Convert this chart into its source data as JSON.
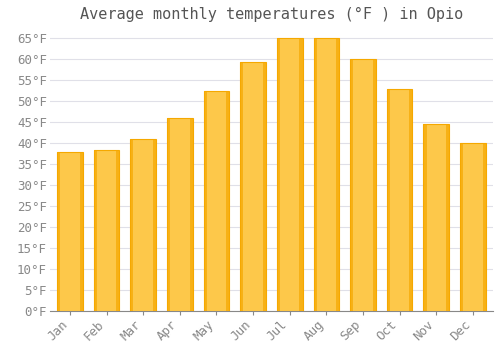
{
  "title": "Average monthly temperatures (°F ) in Opio",
  "categories": [
    "Jan",
    "Feb",
    "Mar",
    "Apr",
    "May",
    "Jun",
    "Jul",
    "Aug",
    "Sep",
    "Oct",
    "Nov",
    "Dec"
  ],
  "values": [
    38,
    38.5,
    41,
    46,
    52.5,
    59.5,
    65,
    65,
    60,
    53,
    44.5,
    40
  ],
  "bar_color_light": "#FDC84A",
  "bar_color_dark": "#F5A800",
  "background_color": "#FFFFFF",
  "grid_color": "#E0E0E8",
  "yticks": [
    0,
    5,
    10,
    15,
    20,
    25,
    30,
    35,
    40,
    45,
    50,
    55,
    60,
    65
  ],
  "ylim": [
    0,
    67
  ],
  "title_fontsize": 11,
  "tick_fontsize": 9,
  "font_color": "#888888",
  "title_color": "#555555"
}
